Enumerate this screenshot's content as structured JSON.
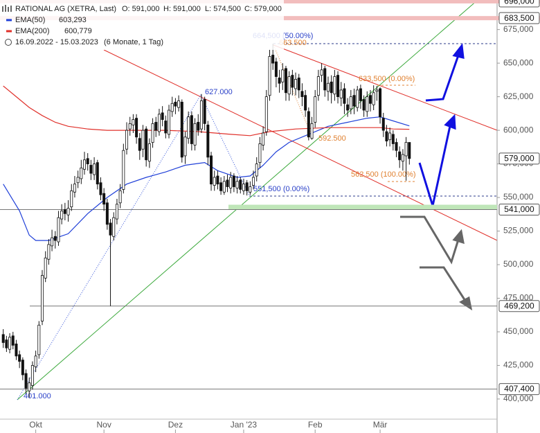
{
  "chart_data": {
    "type": "candlestick",
    "title": "RATIONAL AG (XETRA, Last)",
    "ohlc_labels": [
      "O: 591,000",
      "H: 591,000",
      "L: 574,500",
      "C: 579,000"
    ],
    "period": "16.09.2022 - 15.03.2023",
    "period_note": "(6 Monate, 1 Tag)",
    "xlim": [
      -1,
      152
    ],
    "ylim": [
      385,
      697
    ],
    "xticks": [
      {
        "value": 10,
        "label": "Okt"
      },
      {
        "value": 31,
        "label": "Nov"
      },
      {
        "value": 53,
        "label": "Dez"
      },
      {
        "value": 74,
        "label": "Jan '23"
      },
      {
        "value": 96,
        "label": "Feb"
      },
      {
        "value": 116,
        "label": "Mär"
      }
    ],
    "yticks": [
      {
        "value": 400,
        "label": "400,000"
      },
      {
        "value": 425,
        "label": "425,000"
      },
      {
        "value": 450,
        "label": "450,000"
      },
      {
        "value": 475,
        "label": "475,000"
      },
      {
        "value": 500,
        "label": "500,000"
      },
      {
        "value": 525,
        "label": "525,000"
      },
      {
        "value": 550,
        "label": "550,000"
      },
      {
        "value": 575,
        "label": "575,000"
      },
      {
        "value": 600,
        "label": "600,000"
      },
      {
        "value": 625,
        "label": "625,000"
      },
      {
        "value": 650,
        "label": "650,000"
      },
      {
        "value": 675,
        "label": "675,000"
      }
    ],
    "up_color": "#ffffff",
    "down_color": "#111111",
    "open": [
      448,
      444,
      437,
      447,
      441,
      433,
      429,
      419,
      406,
      410,
      424,
      433,
      458,
      490,
      504,
      514,
      521,
      517,
      534,
      541,
      537,
      543,
      554,
      561,
      564,
      571,
      579,
      574,
      567,
      576,
      561,
      553,
      546,
      531,
      521,
      534,
      546,
      556,
      586,
      601,
      604,
      609,
      594,
      586,
      601,
      577,
      591,
      606,
      599,
      613,
      607,
      597,
      614,
      621,
      617,
      621,
      581,
      594,
      611,
      589,
      606,
      601,
      623,
      604,
      581,
      559,
      566,
      561,
      554,
      563,
      557,
      566,
      557,
      563,
      555,
      561,
      554,
      559,
      566,
      576,
      589,
      599,
      626,
      656,
      651,
      639,
      636,
      646,
      627,
      641,
      631,
      639,
      629,
      626,
      614,
      594,
      606,
      626,
      641,
      646,
      629,
      636,
      627,
      641,
      624,
      631,
      619,
      616,
      626,
      617,
      631,
      623,
      614,
      626,
      619,
      629,
      631,
      609,
      599,
      593,
      597,
      591,
      584,
      577,
      581,
      591
    ],
    "high": [
      452,
      447,
      449,
      450,
      444,
      436,
      431,
      422,
      416,
      428,
      436,
      458,
      496,
      510,
      519,
      526,
      525,
      540,
      545,
      546,
      548,
      560,
      566,
      570,
      578,
      584,
      583,
      578,
      580,
      578,
      565,
      557,
      549,
      534,
      539,
      549,
      560,
      590,
      606,
      610,
      612,
      612,
      598,
      604,
      603,
      594,
      609,
      610,
      616,
      618,
      611,
      619,
      625,
      624,
      626,
      623,
      599,
      614,
      614,
      609,
      612,
      627,
      625,
      607,
      584,
      570,
      570,
      565,
      566,
      567,
      569,
      568,
      566,
      565,
      564,
      563,
      562,
      570,
      580,
      595,
      603,
      630,
      660,
      664.5,
      654,
      645,
      650,
      648,
      644,
      645,
      643,
      642,
      635,
      630,
      617,
      610,
      630,
      645,
      650,
      648,
      640,
      641,
      645,
      644,
      636,
      635,
      624,
      630,
      631,
      633,
      634,
      626,
      629,
      630,
      633.5,
      633,
      632,
      613,
      604,
      602,
      600,
      594,
      588,
      586,
      595,
      591
    ],
    "low": [
      438,
      435,
      434,
      437,
      429,
      423,
      414,
      404,
      401,
      407,
      420,
      430,
      455,
      487,
      500,
      510,
      512,
      514,
      530,
      533,
      532,
      540,
      550,
      557,
      560,
      567,
      570,
      563,
      563,
      556,
      548,
      540,
      526,
      469.2,
      518,
      530,
      542,
      553,
      582,
      596,
      598,
      590,
      578,
      580,
      573,
      572,
      587,
      595,
      596,
      603,
      594,
      594,
      610,
      612,
      614,
      576,
      575,
      590,
      585,
      585,
      596,
      598,
      600,
      574,
      555,
      555,
      556,
      552,
      552,
      554,
      553,
      554,
      553,
      553,
      552,
      551.5,
      552,
      556,
      562,
      572,
      585,
      596,
      622,
      645,
      632,
      628,
      630,
      622,
      622,
      626,
      626,
      624,
      618,
      610,
      592.5,
      593,
      602,
      622,
      636,
      625,
      622,
      620,
      622,
      620,
      618,
      612,
      610,
      612,
      612,
      614,
      616,
      610,
      610,
      614,
      615,
      622,
      605,
      595,
      588,
      588,
      585,
      580,
      572,
      570,
      562.5,
      574.5
    ],
    "close": [
      442,
      438,
      446,
      440,
      432,
      428,
      418,
      408,
      412,
      425,
      432,
      455,
      492,
      505,
      515,
      520,
      518,
      535,
      540,
      538,
      542,
      555,
      560,
      565,
      572,
      578,
      575,
      568,
      575,
      560,
      552,
      545,
      530,
      522,
      535,
      545,
      555,
      585,
      600,
      605,
      608,
      595,
      585,
      600,
      578,
      590,
      605,
      600,
      612,
      608,
      598,
      615,
      620,
      618,
      622,
      580,
      595,
      610,
      590,
      605,
      600,
      622,
      605,
      580,
      560,
      565,
      560,
      555,
      562,
      558,
      565,
      558,
      562,
      556,
      560,
      555,
      558,
      565,
      575,
      590,
      598,
      625,
      655,
      650,
      640,
      635,
      645,
      628,
      640,
      632,
      638,
      630,
      625,
      615,
      595,
      605,
      625,
      640,
      645,
      630,
      635,
      628,
      640,
      625,
      630,
      620,
      615,
      625,
      618,
      630,
      622,
      615,
      625,
      620,
      628,
      630,
      610,
      600,
      592,
      598,
      590,
      585,
      578,
      582,
      591,
      579
    ],
    "series": [
      {
        "name": "EMA(50)",
        "value_label": "603,293",
        "color": "#1f3fd8",
        "x": [
          0,
          5,
          8,
          10,
          14,
          20,
          26,
          32,
          38,
          44,
          50,
          56,
          62,
          66,
          72,
          76,
          80,
          84,
          88,
          94,
          100,
          106,
          112,
          116,
          120,
          125
        ],
        "values": [
          560,
          540,
          522,
          518,
          518,
          523,
          538,
          550,
          560,
          565,
          569,
          574,
          576,
          570,
          565,
          566,
          574,
          584,
          591,
          597,
          603,
          606,
          609,
          610,
          607,
          603.293
        ]
      },
      {
        "name": "EMA(200)",
        "value_label": "600,779",
        "color": "#e0302a",
        "x": [
          0,
          4,
          8,
          12,
          16,
          20,
          26,
          32,
          40,
          50,
          60,
          70,
          76,
          82,
          90,
          100,
          110,
          116,
          120,
          125
        ],
        "values": [
          633,
          625,
          617,
          611,
          606,
          603,
          601,
          600,
          600,
          600,
          599,
          597,
          596,
          599,
          601,
          602,
          602,
          602,
          601,
          600.779
        ]
      }
    ],
    "levels": [
      {
        "value": 696,
        "label": "696,000",
        "color": "#f2bdbd"
      },
      {
        "value": 683.5,
        "label": "683,500",
        "color": "#f2bdbd"
      },
      {
        "value": 579,
        "label": "579,000",
        "color": null
      },
      {
        "value": 541,
        "label": "541,000",
        "color": "#777777",
        "zone_color": "#bfe6b8"
      },
      {
        "value": 469.2,
        "label": "469,200",
        "color": "#777777"
      },
      {
        "value": 407.4,
        "label": "407,400",
        "color": "#777777"
      }
    ],
    "annotations": [
      "664,500 (50.00%)",
      "663.500",
      "633,500 (0.00%)",
      "627.000",
      "592.500",
      "562,500 (100.00%)",
      "551,500 (0.00%)",
      "401.000"
    ]
  }
}
